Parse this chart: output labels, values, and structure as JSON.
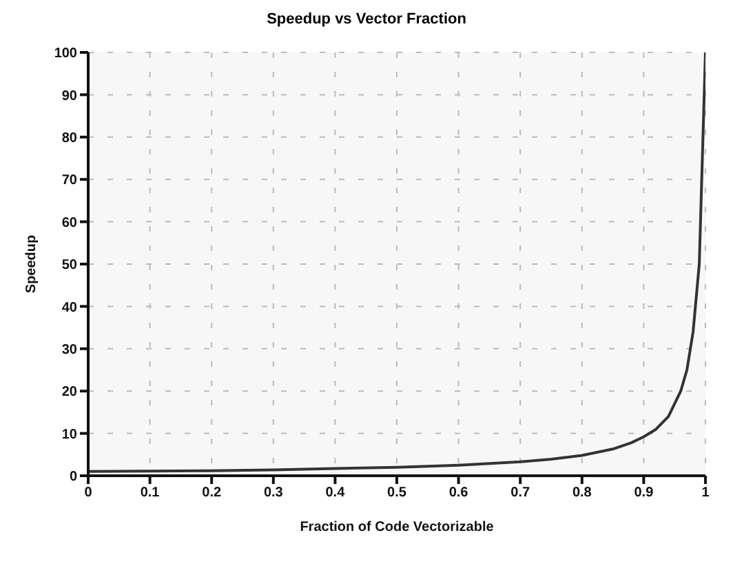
{
  "chart_data": {
    "type": "line",
    "title": "Speedup vs Vector Fraction",
    "xlabel": "Fraction of Code Vectorizable",
    "ylabel": "Speedup",
    "x": [
      0,
      0.1,
      0.2,
      0.3,
      0.4,
      0.5,
      0.6,
      0.7,
      0.75,
      0.8,
      0.85,
      0.88,
      0.9,
      0.92,
      0.94,
      0.95,
      0.96,
      0.97,
      0.98,
      0.99,
      1
    ],
    "series": [
      {
        "color": "#333333",
        "values": [
          1,
          1.1,
          1.2,
          1.4,
          1.7,
          2,
          2.5,
          3.3,
          3.9,
          4.8,
          6.3,
          7.8,
          9.2,
          11,
          14,
          17,
          20,
          25,
          34,
          50,
          100
        ]
      }
    ],
    "xlim": [
      0,
      1
    ],
    "xticks": [
      0,
      0.1,
      0.2,
      0.3,
      0.4,
      0.5,
      0.6,
      0.7,
      0.8,
      0.9,
      1
    ],
    "ylim": [
      0,
      100
    ],
    "yticks": [
      0,
      10,
      20,
      30,
      40,
      50,
      60,
      70,
      80,
      90,
      100
    ],
    "grid": true,
    "marker": "none",
    "line_style": "solid",
    "legend": false
  }
}
